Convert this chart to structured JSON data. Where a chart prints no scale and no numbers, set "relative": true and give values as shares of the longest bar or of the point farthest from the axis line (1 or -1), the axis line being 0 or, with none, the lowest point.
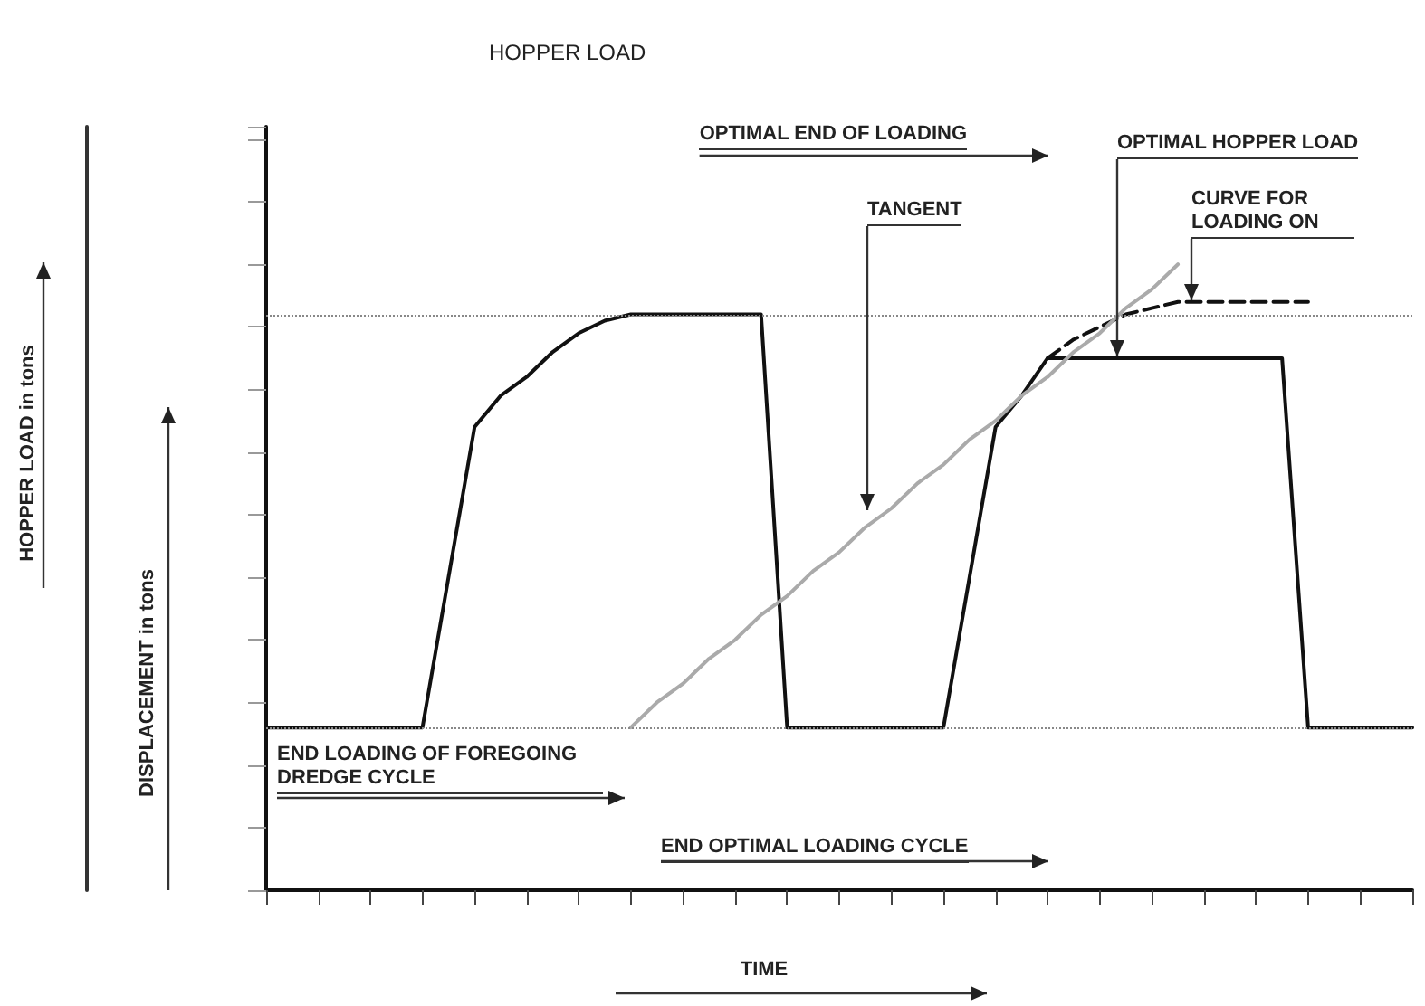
{
  "chart_data": {
    "type": "line",
    "title": "HOPPER LOAD",
    "xlabel": "TIME",
    "relative": true,
    "categories": [
      null,
      null,
      null,
      null,
      null,
      null,
      null,
      null,
      null,
      null,
      null,
      null,
      null,
      null,
      null,
      null,
      null,
      null,
      null,
      null,
      null,
      null,
      null,
      null,
      null,
      null,
      null,
      null,
      null,
      null,
      null,
      null,
      null,
      null,
      null,
      null,
      null,
      null,
      null,
      null,
      null,
      null,
      null,
      null,
      null
    ],
    "grid": false,
    "marker": "none",
    "series": [
      {
        "color": "#111111",
        "values": [
          0.26,
          0.26,
          0.26,
          0.26,
          0.26,
          0.26,
          0.26,
          0.5,
          0.74,
          0.79,
          0.82,
          0.86,
          0.89,
          0.91,
          0.92,
          0.92,
          0.92,
          0.92,
          0.92,
          0.92,
          0.26,
          0.26,
          0.26,
          0.26,
          0.26,
          0.26,
          0.26,
          0.5,
          0.74,
          0.79,
          0.85,
          0.85,
          0.85,
          0.85,
          0.85,
          0.85,
          0.85,
          0.85,
          0.85,
          0.85,
          0.26,
          0.26,
          0.26,
          0.26,
          0.26
        ]
      },
      {
        "color": "#111111",
        "line_style": "dashed",
        "values": [
          null,
          null,
          null,
          null,
          null,
          null,
          null,
          null,
          null,
          null,
          null,
          null,
          null,
          null,
          null,
          null,
          null,
          null,
          null,
          null,
          null,
          null,
          null,
          null,
          null,
          null,
          null,
          null,
          null,
          null,
          0.85,
          0.88,
          0.9,
          0.92,
          0.93,
          0.94,
          0.94,
          0.94,
          0.94,
          0.94,
          0.94,
          null,
          null,
          null,
          null
        ]
      },
      {
        "color": "#aaaaaa",
        "values": [
          null,
          null,
          null,
          null,
          null,
          null,
          null,
          null,
          null,
          null,
          null,
          null,
          null,
          null,
          0.26,
          0.3,
          0.33,
          0.37,
          0.4,
          0.44,
          0.47,
          0.51,
          0.54,
          0.58,
          0.61,
          0.65,
          0.68,
          0.72,
          0.75,
          0.79,
          0.82,
          0.86,
          0.89,
          0.93,
          0.96,
          1,
          null,
          null,
          null,
          null,
          null,
          null,
          null,
          null,
          null
        ]
      }
    ],
    "ref_lines": [
      {
        "axis": "y",
        "value": 0.92,
        "color": "#888888",
        "line_style": "dotted"
      },
      {
        "axis": "y",
        "value": 0.26,
        "color": "#888888",
        "line_style": "dotted"
      }
    ],
    "annotations": [
      "TANGENT",
      "OPTIMAL HOPPER LOAD",
      "CURVE FOR LOADING ON",
      "END LOADING OF FOREGOING DREDGE CYCLE",
      "END OPTIMAL LOADING CYCLE",
      "OPTIMAL END OF LOADING",
      "DISPLACEMENT in tons",
      "HOPPER LOAD in tons"
    ]
  }
}
